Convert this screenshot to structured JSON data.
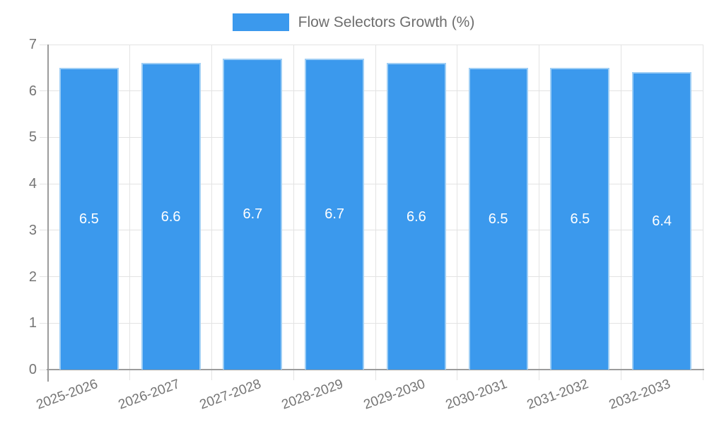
{
  "legend": {
    "label": "Flow Selectors Growth (%)"
  },
  "chart_data": {
    "type": "bar",
    "title": "Flow Selectors Growth (%)",
    "legend_entries": [
      "Flow Selectors Growth (%)"
    ],
    "legend_position": "top",
    "categories": [
      "2025-2026",
      "2026-2027",
      "2027-2028",
      "2028-2029",
      "2029-2030",
      "2030-2031",
      "2031-2032",
      "2032-2033"
    ],
    "values": [
      6.5,
      6.6,
      6.7,
      6.7,
      6.6,
      6.5,
      6.5,
      6.4
    ],
    "value_labels": [
      "6.5",
      "6.6",
      "6.7",
      "6.7",
      "6.6",
      "6.5",
      "6.5",
      "6.4"
    ],
    "xlabel": "",
    "ylabel": "",
    "ylim": [
      0,
      7
    ],
    "yticks": [
      0,
      1,
      2,
      3,
      4,
      5,
      6,
      7
    ],
    "grid": true,
    "colors": {
      "bar_fill": "#3b99ed",
      "bar_border": "#9ecef5",
      "bar_label_text": "#ffffff",
      "gridline": "#e3e3e3",
      "axis_line": "#9c9c9c",
      "tick_text": "#757575",
      "legend_text": "#6e6e6e"
    }
  }
}
